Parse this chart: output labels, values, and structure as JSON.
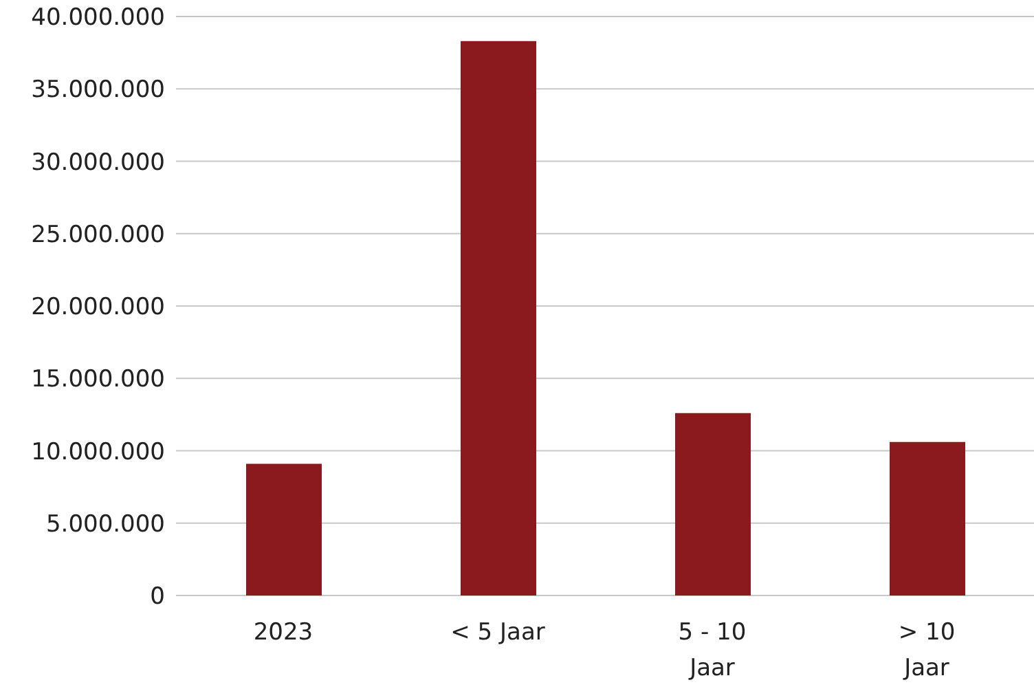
{
  "chart_data": {
    "type": "bar",
    "categories": [
      "2023",
      "< 5 Jaar",
      "5 - 10 Jaar",
      "> 10 Jaar"
    ],
    "values": [
      9100000,
      38300000,
      12600000,
      10600000
    ],
    "color": "#8b1a1e",
    "ylim": [
      0,
      40000000
    ],
    "yticks": [
      {
        "value": 0,
        "label": "0"
      },
      {
        "value": 5000000,
        "label": "5.000.000"
      },
      {
        "value": 10000000,
        "label": "10.000.000"
      },
      {
        "value": 15000000,
        "label": "15.000.000"
      },
      {
        "value": 20000000,
        "label": "20.000.000"
      },
      {
        "value": 25000000,
        "label": "25.000.000"
      },
      {
        "value": 30000000,
        "label": "30.000.000"
      },
      {
        "value": 35000000,
        "label": "35.000.000"
      },
      {
        "value": 40000000,
        "label": "40.000.000"
      }
    ],
    "grid": "y"
  }
}
